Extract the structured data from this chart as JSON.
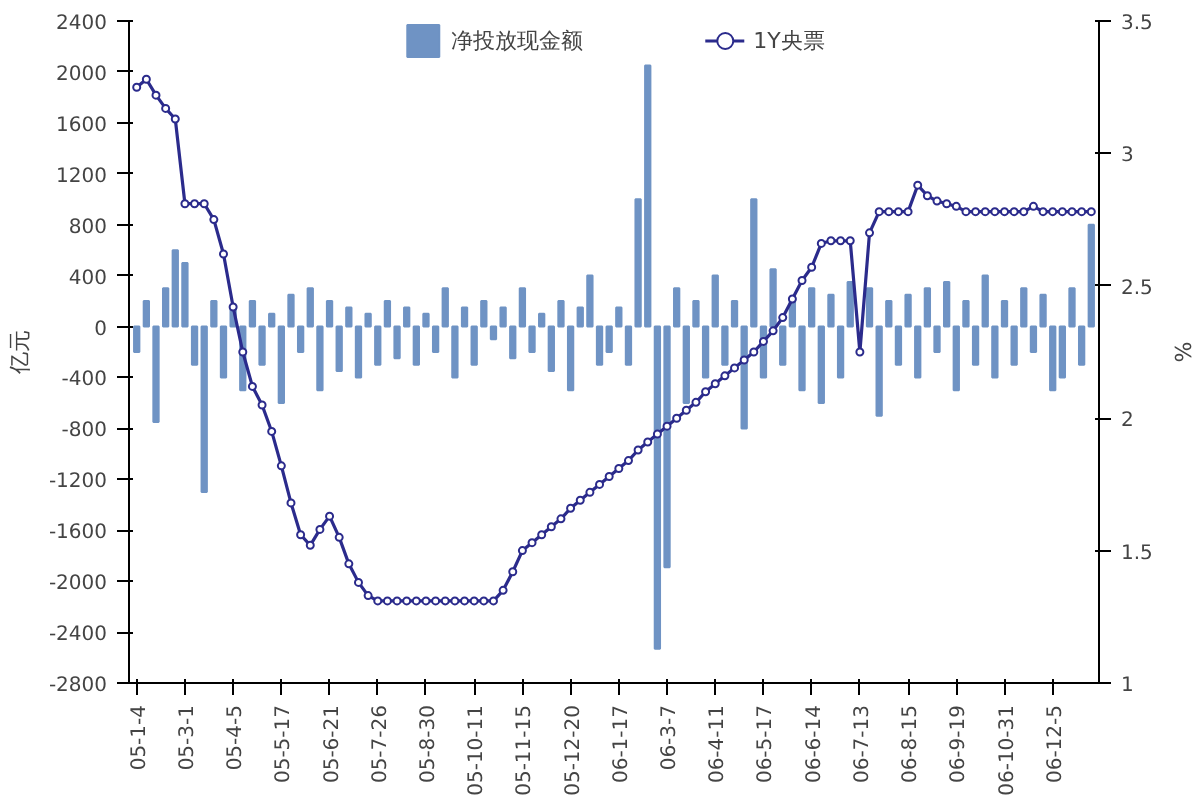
{
  "chart_data": {
    "type": "bar",
    "ylabel": "亿元",
    "y2label": "%",
    "categories": [
      "05-1-4",
      null,
      null,
      null,
      null,
      "05-3-1",
      null,
      null,
      null,
      null,
      "05-4-5",
      null,
      null,
      null,
      null,
      "05-5-17",
      null,
      null,
      null,
      null,
      "05-6-21",
      null,
      null,
      null,
      null,
      "05-7-26",
      null,
      null,
      null,
      null,
      "05-8-30",
      null,
      null,
      null,
      null,
      "05-10-11",
      null,
      null,
      null,
      null,
      "05-11-15",
      null,
      null,
      null,
      null,
      "05-12-20",
      null,
      null,
      null,
      null,
      "06-1-17",
      null,
      null,
      null,
      null,
      "06-3-7",
      null,
      null,
      null,
      null,
      "06-4-11",
      null,
      null,
      null,
      null,
      "06-5-17",
      null,
      null,
      null,
      null,
      "06-6-14",
      null,
      null,
      null,
      null,
      "06-7-13",
      null,
      null,
      null,
      null,
      "06-8-15",
      null,
      null,
      null,
      null,
      "06-9-19",
      null,
      null,
      null,
      null,
      "06-10-31",
      null,
      null,
      null,
      null,
      "06-12-5",
      null,
      null,
      null,
      null
    ],
    "series": [
      {
        "name": "净投放现金额",
        "color": "#6f93c4",
        "values": [
          -200,
          200,
          -750,
          300,
          600,
          500,
          -300,
          -1300,
          200,
          -400,
          150,
          -500,
          200,
          -300,
          100,
          -600,
          250,
          -200,
          300,
          -500,
          200,
          -350,
          150,
          -400,
          100,
          -300,
          200,
          -250,
          150,
          -300,
          100,
          -200,
          300,
          -400,
          150,
          -300,
          200,
          -100,
          150,
          -250,
          300,
          -200,
          100,
          -350,
          200,
          -500,
          150,
          400,
          -300,
          -200,
          150,
          -300,
          1000,
          2050,
          -2530,
          -1890,
          300,
          -600,
          200,
          -400,
          400,
          -300,
          200,
          -800,
          1000,
          -400,
          450,
          -300,
          200,
          -500,
          300,
          -600,
          250,
          -400,
          350,
          null,
          300,
          -700,
          200,
          -300,
          250,
          -400,
          300,
          -200,
          350,
          -500,
          200,
          -300,
          400,
          -400,
          200,
          -300,
          300,
          -200,
          250,
          -500,
          -400,
          300,
          -300,
          800
        ]
      },
      {
        "name": "1Y央票",
        "type": "line",
        "axis": "y2",
        "color": "#2b2b8c",
        "marker": "circle",
        "values": [
          3.25,
          3.28,
          3.22,
          3.17,
          3.13,
          2.81,
          2.81,
          2.81,
          2.75,
          2.62,
          2.42,
          2.25,
          2.12,
          2.05,
          1.95,
          1.82,
          1.68,
          1.56,
          1.52,
          1.58,
          1.63,
          1.55,
          1.45,
          1.38,
          1.33,
          1.31,
          1.31,
          1.31,
          1.31,
          1.31,
          1.31,
          1.31,
          1.31,
          1.31,
          1.31,
          1.31,
          1.31,
          1.31,
          1.35,
          1.42,
          1.5,
          1.53,
          1.56,
          1.59,
          1.62,
          1.66,
          1.69,
          1.72,
          1.75,
          1.78,
          1.81,
          1.84,
          1.88,
          1.91,
          1.94,
          1.97,
          2.0,
          2.03,
          2.06,
          2.1,
          2.13,
          2.16,
          2.19,
          2.22,
          2.25,
          2.29,
          2.33,
          2.38,
          2.45,
          2.52,
          2.57,
          2.66,
          2.67,
          2.67,
          2.67,
          2.25,
          2.7,
          2.78,
          2.78,
          2.78,
          2.78,
          2.88,
          2.84,
          2.82,
          2.81,
          2.8,
          2.78,
          2.78,
          2.78,
          2.78,
          2.78,
          2.78,
          2.78,
          2.8,
          2.78,
          2.78,
          2.78,
          2.78,
          2.78,
          2.78
        ]
      }
    ],
    "ylim": [
      -2800,
      2400
    ],
    "yticks": [
      -2800,
      -2400,
      -2000,
      -1600,
      -1200,
      -800,
      -400,
      0,
      400,
      800,
      1200,
      1600,
      2000,
      2400
    ],
    "y2lim": [
      1,
      3.5
    ],
    "y2ticks": [
      1,
      {
        "value": 1.5,
        "label": "1.5"
      },
      2,
      {
        "value": 2.5,
        "label": "2.5"
      },
      3,
      {
        "value": 3.5,
        "label": "3.5"
      }
    ],
    "grid": false,
    "legend": "top"
  }
}
